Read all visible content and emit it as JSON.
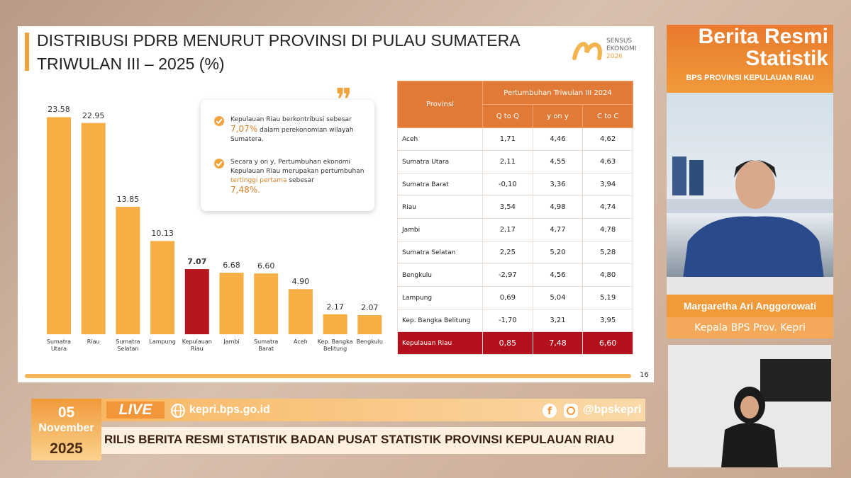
{
  "slide": {
    "title": [
      "DISTRIBUSI PDRB MENURUT PROVINSI DI PULAU SUMATERA",
      "TRIWULAN III – 2025 (%)"
    ],
    "logo": [
      "SENSUS",
      "EKONOMI",
      "2026"
    ],
    "page_number": "16",
    "callout": [
      [
        "Kepulauan Riau berkontribusi sebesar",
        "7,07%",
        "dalam perekonomian wilayah Sumatera."
      ],
      [
        "Secara y on y, Pertumbuhan ekonomi Kepulauan Riau merupakan pertumbuhan",
        "tertinggi pertama",
        "sebesar",
        "7,48%."
      ]
    ]
  },
  "chart_data": {
    "type": "bar",
    "categories": [
      "Sumatra Utara",
      "Riau",
      "Sumatra Selatan",
      "Lampung",
      "Kepulauan Riau",
      "Jambi",
      "Sumatra Barat",
      "Aceh",
      "Kep. Bangka Belitung",
      "Bengkulu"
    ],
    "values": [
      23.58,
      22.95,
      13.85,
      10.13,
      7.07,
      6.68,
      6.6,
      4.9,
      2.17,
      2.07
    ],
    "value_labels": [
      "23.58",
      "22.95",
      "13.85",
      "10.13",
      "7.07",
      "6.68",
      "6.60",
      "4.90",
      "2.17",
      "2.07"
    ],
    "colors": [
      "#f6ae45",
      "#f6ae45",
      "#f6ae45",
      "#f6ae45",
      "#b5161e",
      "#f6ae45",
      "#f6ae45",
      "#f6ae45",
      "#f6ae45",
      "#f6ae45"
    ]
  },
  "table": {
    "header": "Provinsi",
    "group_header": "Pertumbuhan Triwulan III 2024",
    "columns": [
      "Q to Q",
      "y on y",
      "C to C"
    ],
    "rows": [
      [
        "Aceh",
        "1,71",
        "4,46",
        "4,62"
      ],
      [
        "Sumatra Utara",
        "2,11",
        "4,55",
        "4,63"
      ],
      [
        "Sumatra Barat",
        "-0,10",
        "3,36",
        "3,94"
      ],
      [
        "Riau",
        "3,54",
        "4,98",
        "4,74"
      ],
      [
        "Jambi",
        "2,17",
        "4,77",
        "4,78"
      ],
      [
        "Sumatra Selatan",
        "2,25",
        "5,20",
        "5,28"
      ],
      [
        "Bengkulu",
        "-2,97",
        "4,56",
        "4,80"
      ],
      [
        "Lampung",
        "0,69",
        "5,04",
        "5,19"
      ],
      [
        "Kep. Bangka Belitung",
        "-1,70",
        "3,21",
        "3,95"
      ],
      [
        "Kepulauan Riau",
        "0,85",
        "7,48",
        "6,60"
      ]
    ]
  },
  "side_panel": {
    "title": [
      "Berita Resmi",
      "Statistik"
    ],
    "subtitle": "BPS PROVINSI KEPULAUAN RIAU",
    "speaker_name": "Margaretha Ari Anggorowati",
    "speaker_role": "Kepala BPS Prov. Kepri"
  },
  "ticker": {
    "day": "05",
    "month": "November",
    "year": "2025",
    "live": "LIVE",
    "website": "kepri.bps.go.id",
    "social": "@bpskepri",
    "headline": "RILIS BERITA RESMI STATISTIK BADAN PUSAT STATISTIK PROVINSI KEPULAUAN RIAU"
  }
}
